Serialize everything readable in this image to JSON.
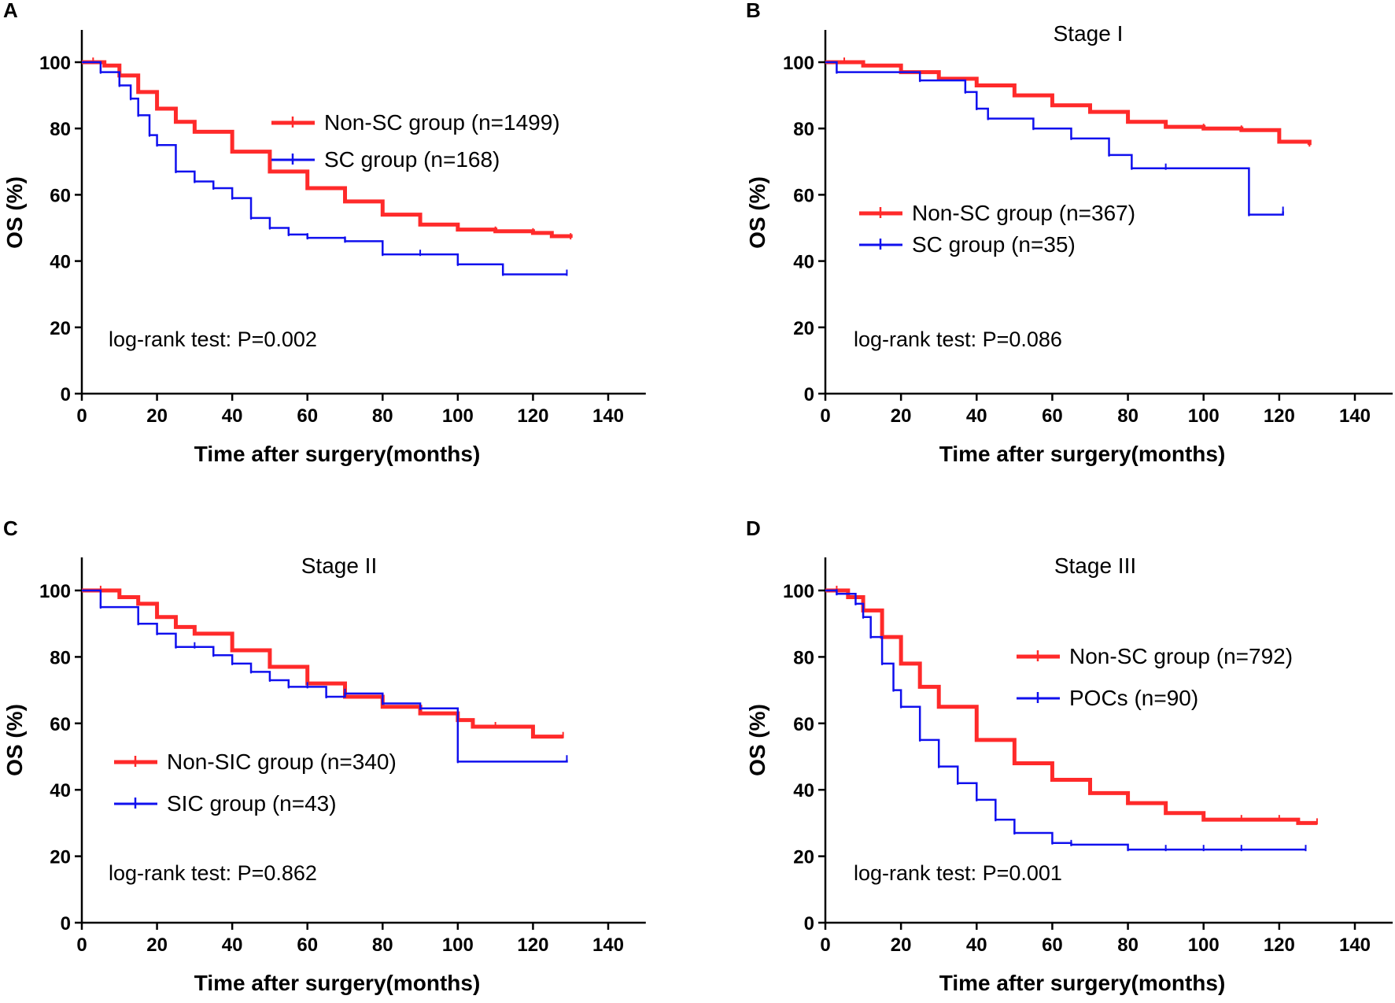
{
  "figure": {
    "colors": {
      "nonsc": "#ff2a2a",
      "sc": "#1010ee",
      "axis": "#000000"
    }
  },
  "chart_data": [
    {
      "type": "line",
      "panel": "A",
      "title": "",
      "xlabel": "Time after surgery(months)",
      "ylabel": "OS (%)",
      "xlim": [
        0,
        150
      ],
      "ylim": [
        0,
        110
      ],
      "xticks": [
        "0",
        "20",
        "40",
        "60",
        "80",
        "100",
        "120",
        "140"
      ],
      "yticks": [
        "0",
        "20",
        "40",
        "60",
        "80",
        "100"
      ],
      "legend": [
        "Non-SC group  (n=1499)",
        "SC group  (n=168)"
      ],
      "legend_position": "top-right",
      "annotation": "log-rank test: P=0.002",
      "series": [
        {
          "name": "Non-SC group  (n=1499)",
          "color": "#ff2a2a",
          "x": [
            0,
            3,
            6,
            10,
            15,
            20,
            25,
            30,
            40,
            50,
            60,
            70,
            80,
            90,
            100,
            110,
            120,
            125,
            130
          ],
          "y": [
            100,
            100,
            99,
            96,
            91,
            86,
            82,
            79,
            73,
            67,
            62,
            58,
            54,
            51,
            49.5,
            49,
            48.5,
            47.5,
            47
          ]
        },
        {
          "name": "SC group  (n=168)",
          "color": "#1010ee",
          "x": [
            0,
            5,
            10,
            13,
            15,
            18,
            20,
            25,
            30,
            35,
            40,
            45,
            50,
            55,
            60,
            70,
            80,
            90,
            100,
            112,
            129
          ],
          "y": [
            100,
            97,
            93,
            89,
            84,
            78,
            75,
            67,
            64,
            62,
            59,
            53,
            50,
            48,
            47,
            46,
            42,
            42,
            39,
            36,
            36
          ]
        }
      ]
    },
    {
      "type": "line",
      "panel": "B",
      "title": "Stage I",
      "xlabel": "Time after surgery(months)",
      "ylabel": "OS (%)",
      "xlim": [
        0,
        150
      ],
      "ylim": [
        0,
        110
      ],
      "xticks": [
        "0",
        "20",
        "40",
        "60",
        "80",
        "100",
        "120",
        "140"
      ],
      "yticks": [
        "0",
        "20",
        "40",
        "60",
        "80",
        "100"
      ],
      "legend": [
        "Non-SC group  (n=367)",
        "SC group (n=35)"
      ],
      "legend_position": "middle-left",
      "annotation": "log-rank test: P=0.086",
      "series": [
        {
          "name": "Non-SC group  (n=367)",
          "color": "#ff2a2a",
          "x": [
            0,
            5,
            10,
            20,
            30,
            40,
            50,
            60,
            70,
            80,
            90,
            100,
            110,
            120,
            128
          ],
          "y": [
            100,
            100,
            99,
            97,
            95,
            93,
            90,
            87,
            85,
            82,
            80.5,
            80,
            79.5,
            76,
            75
          ]
        },
        {
          "name": "SC group (n=35)",
          "color": "#1010ee",
          "x": [
            0,
            3,
            25,
            37,
            40,
            43,
            55,
            65,
            75,
            81,
            90,
            112,
            121
          ],
          "y": [
            100,
            97,
            94.5,
            91,
            86,
            83,
            80,
            77,
            72,
            68,
            68,
            54,
            55
          ]
        }
      ]
    },
    {
      "type": "line",
      "panel": "C",
      "title": "Stage II",
      "xlabel": "Time after surgery(months)",
      "ylabel": "OS (%)",
      "xlim": [
        0,
        150
      ],
      "ylim": [
        0,
        110
      ],
      "xticks": [
        "0",
        "20",
        "40",
        "60",
        "80",
        "100",
        "120",
        "140"
      ],
      "yticks": [
        "0",
        "20",
        "40",
        "60",
        "80",
        "100"
      ],
      "legend": [
        "Non-SIC group  (n=340)",
        "SIC group (n=43)"
      ],
      "legend_position": "bottom-left",
      "annotation": "log-rank test: P=0.862",
      "series": [
        {
          "name": "Non-SIC group  (n=340)",
          "color": "#ff2a2a",
          "x": [
            0,
            5,
            10,
            15,
            20,
            25,
            30,
            40,
            50,
            60,
            70,
            80,
            90,
            100,
            104,
            110,
            120,
            128
          ],
          "y": [
            100,
            100,
            98,
            96,
            92,
            89,
            87,
            82,
            77,
            72,
            68,
            65,
            63,
            61,
            59,
            59,
            56,
            56
          ]
        },
        {
          "name": "SIC group (n=43)",
          "color": "#1010ee",
          "x": [
            0,
            5,
            15,
            20,
            25,
            30,
            35,
            40,
            45,
            50,
            55,
            60,
            65,
            70,
            80,
            90,
            100,
            129
          ],
          "y": [
            100,
            95,
            90,
            87,
            83,
            83,
            80.5,
            78,
            75.5,
            73,
            71,
            71,
            68,
            69,
            66,
            64.5,
            48.5,
            49
          ]
        }
      ]
    },
    {
      "type": "line",
      "panel": "D",
      "title": "Stage III",
      "xlabel": "Time after surgery(months)",
      "ylabel": "OS (%)",
      "xlim": [
        0,
        150
      ],
      "ylim": [
        0,
        110
      ],
      "xticks": [
        "0",
        "20",
        "40",
        "60",
        "80",
        "100",
        "120",
        "140"
      ],
      "yticks": [
        "0",
        "20",
        "40",
        "60",
        "80",
        "100"
      ],
      "legend": [
        "Non-SC group (n=792)",
        "POCs (n=90)"
      ],
      "legend_position": "top-right",
      "annotation": "log-rank test: P=0.001",
      "series": [
        {
          "name": "Non-SC group (n=792)",
          "color": "#ff2a2a",
          "x": [
            0,
            3,
            6,
            10,
            15,
            20,
            25,
            30,
            40,
            50,
            60,
            70,
            80,
            90,
            100,
            110,
            120,
            125,
            130
          ],
          "y": [
            100,
            100,
            98,
            94,
            86,
            78,
            71,
            65,
            55,
            48,
            43,
            39,
            36,
            33,
            31,
            31,
            31,
            30,
            30
          ]
        },
        {
          "name": "POCs (n=90)",
          "color": "#1010ee",
          "x": [
            0,
            3,
            8,
            10,
            12,
            15,
            18,
            20,
            25,
            30,
            35,
            40,
            45,
            50,
            60,
            65,
            80,
            90,
            100,
            110,
            127
          ],
          "y": [
            100,
            99,
            96,
            92,
            86,
            78,
            70,
            65,
            55,
            47,
            42,
            37,
            31,
            27,
            24,
            23.5,
            22,
            22,
            22,
            22,
            22
          ]
        }
      ]
    }
  ]
}
